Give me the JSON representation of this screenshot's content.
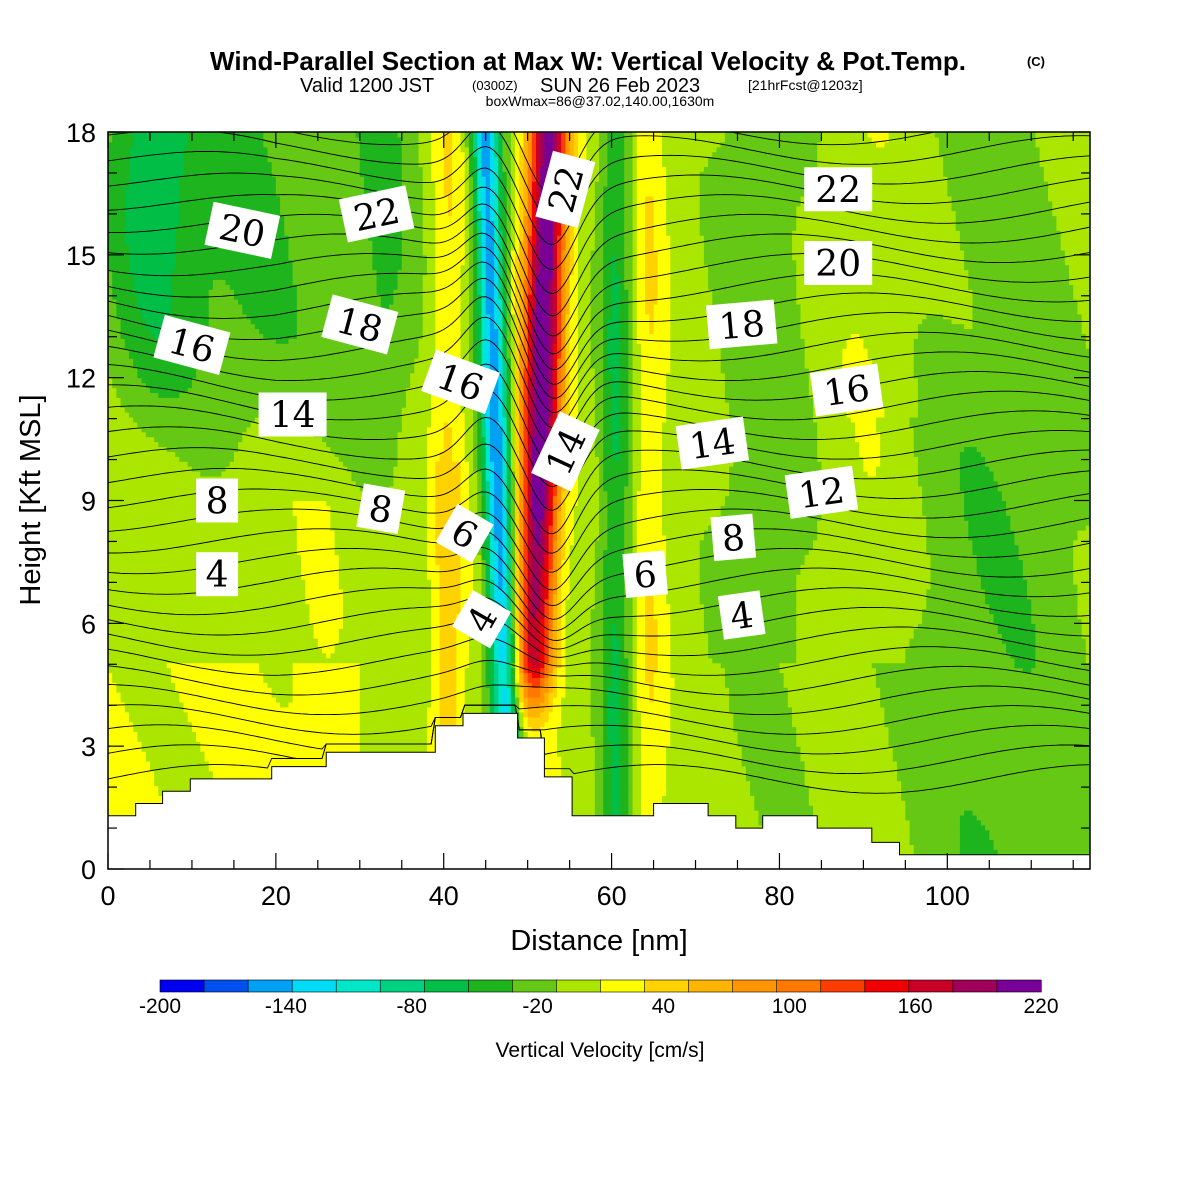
{
  "header": {
    "title": "Wind-Parallel Section at Max W: Vertical Velocity & Pot.Temp.",
    "title_mark": "(C)",
    "valid_prefix": "Valid 1200 JST",
    "valid_utc": "(0300Z)",
    "valid_date": "SUN 26 Feb 2023",
    "forecast": "[21hrFcst@1203z]",
    "box_info": "boxWmax=86@37.02,140.00,1630m"
  },
  "chart_data": {
    "type": "contour",
    "xlabel": "Distance [nm]",
    "ylabel": "Height [Kft MSL]",
    "xlim": [
      0,
      117
    ],
    "ylim": [
      0,
      18
    ],
    "x_ticks": [
      0,
      20,
      40,
      60,
      80,
      100
    ],
    "y_ticks": [
      0,
      3,
      6,
      9,
      12,
      15,
      18
    ],
    "colorbar": {
      "title": "Vertical Velocity [cm/s]",
      "min": -200,
      "max": 220,
      "tick_labels": [
        "-200",
        "-140",
        "-80",
        "-20",
        "40",
        "100",
        "160",
        "220"
      ],
      "colors": [
        "#0000f0",
        "#0050f0",
        "#00a0f5",
        "#00dcf5",
        "#00e6c8",
        "#00d282",
        "#00be46",
        "#1eb41e",
        "#64c814",
        "#aae600",
        "#ffff00",
        "#ffd200",
        "#ffb400",
        "#ff9600",
        "#ff7800",
        "#ff3c00",
        "#f00000",
        "#c80028",
        "#a0005a",
        "#780096"
      ]
    },
    "terrain_profile": [
      [
        0,
        1.3
      ],
      [
        3.3,
        1.3
      ],
      [
        3.3,
        1.6
      ],
      [
        6.5,
        1.6
      ],
      [
        6.5,
        1.9
      ],
      [
        9.8,
        1.9
      ],
      [
        9.8,
        2.2
      ],
      [
        19.5,
        2.2
      ],
      [
        19.5,
        2.5
      ],
      [
        26,
        2.5
      ],
      [
        26,
        2.85
      ],
      [
        39,
        2.85
      ],
      [
        39,
        3.5
      ],
      [
        42.3,
        3.5
      ],
      [
        42.3,
        3.8
      ],
      [
        48.8,
        3.8
      ],
      [
        48.8,
        3.2
      ],
      [
        52,
        3.2
      ],
      [
        52,
        2.25
      ],
      [
        55.3,
        2.25
      ],
      [
        55.3,
        1.3
      ],
      [
        65,
        1.3
      ],
      [
        65,
        1.6
      ],
      [
        71.5,
        1.6
      ],
      [
        71.5,
        1.3
      ],
      [
        74.8,
        1.3
      ],
      [
        74.8,
        1.0
      ],
      [
        78,
        1.0
      ],
      [
        78,
        1.3
      ],
      [
        84.5,
        1.3
      ],
      [
        84.5,
        1.0
      ],
      [
        91,
        1.0
      ],
      [
        91,
        0.65
      ],
      [
        94.3,
        0.65
      ],
      [
        94.3,
        0.35
      ],
      [
        117,
        0.35
      ]
    ],
    "updraft_core": {
      "x_at_bottom": 50.5,
      "x_at_top": 52.5,
      "max_cm_s": 220
    },
    "downdraft_core": {
      "x_at_bottom": 47.5,
      "x_at_top": 45,
      "min_cm_s": -150
    },
    "contour_labels": [
      {
        "text": "20",
        "x": 16,
        "y": 15.6,
        "angle": 12
      },
      {
        "text": "22",
        "x": 32,
        "y": 16.0,
        "angle": -12
      },
      {
        "text": "22",
        "x": 54.5,
        "y": 16.6,
        "angle": -75
      },
      {
        "text": "22",
        "x": 87,
        "y": 16.6,
        "angle": 0
      },
      {
        "text": "20",
        "x": 87,
        "y": 14.8,
        "angle": 0
      },
      {
        "text": "16",
        "x": 10,
        "y": 12.8,
        "angle": 15
      },
      {
        "text": "18",
        "x": 30,
        "y": 13.3,
        "angle": 15
      },
      {
        "text": "18",
        "x": 75.5,
        "y": 13.3,
        "angle": -5
      },
      {
        "text": "16",
        "x": 42,
        "y": 11.9,
        "angle": 20
      },
      {
        "text": "16",
        "x": 88,
        "y": 11.7,
        "angle": -8
      },
      {
        "text": "14",
        "x": 22,
        "y": 11.1,
        "angle": 0
      },
      {
        "text": "14",
        "x": 54.5,
        "y": 10.2,
        "angle": -65
      },
      {
        "text": "14",
        "x": 72,
        "y": 10.4,
        "angle": -8
      },
      {
        "text": "12",
        "x": 85,
        "y": 9.2,
        "angle": -8
      },
      {
        "text": "8",
        "x": 13,
        "y": 9.0,
        "angle": 0
      },
      {
        "text": "8",
        "x": 32.5,
        "y": 8.8,
        "angle": 10
      },
      {
        "text": "6",
        "x": 42.5,
        "y": 8.2,
        "angle": 30
      },
      {
        "text": "8",
        "x": 74.5,
        "y": 8.1,
        "angle": -5
      },
      {
        "text": "4",
        "x": 13,
        "y": 7.2,
        "angle": 0
      },
      {
        "text": "6",
        "x": 64,
        "y": 7.2,
        "angle": -5
      },
      {
        "text": "4",
        "x": 44.5,
        "y": 6.1,
        "angle": -60
      },
      {
        "text": "4",
        "x": 75.5,
        "y": 6.2,
        "angle": -8
      }
    ]
  }
}
